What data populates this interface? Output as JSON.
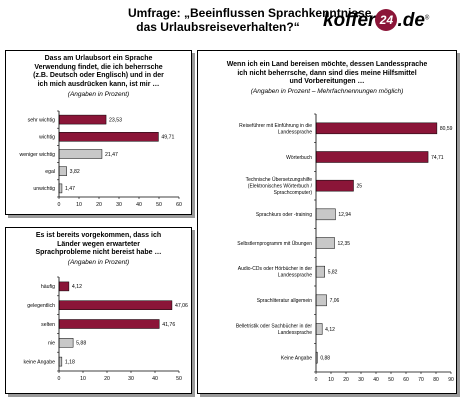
{
  "title": {
    "line1": "Umfrage: „Beeinflussen Sprachkenntnisse",
    "line2": "das Urlaubsreiseverhalten?“"
  },
  "logo": {
    "part1": "koffer",
    "badge": "24",
    "part2": ".de",
    "reg": "®"
  },
  "colors": {
    "highlight": "#8b1538",
    "other": "#c8c8c8"
  },
  "chart_data": [
    {
      "type": "bar",
      "orientation": "horizontal",
      "title_lines": [
        "Dass am Urlaubsort ein Sprache",
        "Verwendung findet, die ich beherrsche",
        "(z.B. Deutsch oder Englisch) und in der",
        "ich mich ausdrücken kann, ist mir …"
      ],
      "subtitle": "(Angaben in Prozent)",
      "categories": [
        "sehr wichtig",
        "wichtig",
        "weniger wichtig",
        "egal",
        "unwichtig"
      ],
      "values": [
        23.53,
        49.71,
        21.47,
        3.82,
        1.47
      ],
      "value_labels": [
        "23,53",
        "49,71",
        "21,47",
        "3,82",
        "1,47"
      ],
      "highlight": [
        true,
        true,
        false,
        false,
        false
      ],
      "xlim": [
        0,
        60
      ],
      "xticks": [
        "0",
        "10",
        "20",
        "30",
        "40",
        "50",
        "60"
      ]
    },
    {
      "type": "bar",
      "orientation": "horizontal",
      "title_lines": [
        "Es ist bereits vorgekommen, dass ich",
        "Länder wegen erwarteter",
        "Sprachprobleme nicht bereist habe …"
      ],
      "subtitle": "(Angaben in Prozent)",
      "categories": [
        "häufig",
        "gelegentlich",
        "selten",
        "nie",
        "keine Angabe"
      ],
      "values": [
        4.12,
        47.06,
        41.76,
        5.88,
        1.18
      ],
      "value_labels": [
        "4,12",
        "47,06",
        "41,76",
        "5,88",
        "1,18"
      ],
      "highlight": [
        true,
        true,
        true,
        false,
        false
      ],
      "xlim": [
        0,
        50
      ],
      "xticks": [
        "0",
        "10",
        "20",
        "30",
        "40",
        "50"
      ]
    },
    {
      "type": "bar",
      "orientation": "horizontal",
      "title_lines": [
        "Wenn ich ein Land bereisen möchte, dessen Landessprache",
        "ich nicht beherrsche, dann sind dies meine Hilfsmittel",
        "und Vorbereitungen …"
      ],
      "subtitle": "(Angaben in Prozent – Mehrfachnennungen möglich)",
      "categories": [
        [
          "Reiseführer mit Einführung in die",
          "Landessprache"
        ],
        [
          "Wörterbuch"
        ],
        [
          "Technische Übersetzungshilfe",
          "(Elektronisches Wörterbuch /",
          "Sprachcomputer)"
        ],
        [
          "Sprachkurs oder -training"
        ],
        [
          "Selbstlernprogramm mit Übungen"
        ],
        [
          "Audio-CDs oder Hörbücher in der",
          "Landessprache"
        ],
        [
          "Sprachliteratur allgemein"
        ],
        [
          "Belletristik oder Sachbücher in der",
          "Landessprache"
        ],
        [
          "Keine Angabe"
        ]
      ],
      "values": [
        80.59,
        74.71,
        25,
        12.94,
        12.35,
        5.82,
        7.06,
        4.12,
        0.88
      ],
      "value_labels": [
        "80,59",
        "74,71",
        "25",
        "12,94",
        "12,35",
        "5,82",
        "7,06",
        "4,12",
        "0,88"
      ],
      "highlight": [
        true,
        true,
        true,
        false,
        false,
        false,
        false,
        false,
        false
      ],
      "xlim": [
        0,
        90
      ],
      "xticks": [
        "0",
        "10",
        "20",
        "30",
        "40",
        "50",
        "60",
        "70",
        "80",
        "90"
      ]
    }
  ]
}
